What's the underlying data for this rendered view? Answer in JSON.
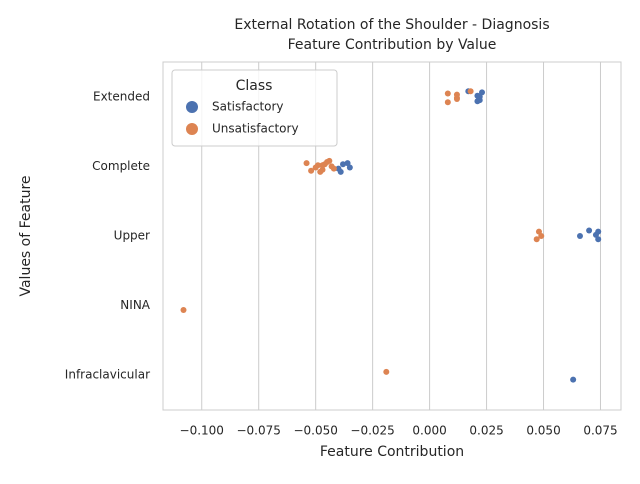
{
  "chart_data": {
    "type": "strip",
    "title": "External Rotation of the Shoulder - Diagnosis",
    "subtitle": "Feature Contribution by Value",
    "xlabel": "Feature Contribution",
    "ylabel": "Values of Feature",
    "categories": [
      "Extended",
      "Complete",
      "Upper",
      "NINA",
      "Infraclavicular"
    ],
    "xlim": [
      -0.117,
      0.084
    ],
    "xticks": [
      {
        "value": -0.1,
        "label": "−0.100"
      },
      {
        "value": -0.075,
        "label": "−0.075"
      },
      {
        "value": -0.05,
        "label": "−0.050"
      },
      {
        "value": -0.025,
        "label": "−0.025"
      },
      {
        "value": 0,
        "label": "0.000"
      },
      {
        "value": 0.025,
        "label": "0.025"
      },
      {
        "value": 0.05,
        "label": "0.050"
      },
      {
        "value": 0.075,
        "label": "0.075"
      }
    ],
    "grid": true,
    "legend": {
      "title": "Class",
      "position": "upper-left"
    },
    "series": [
      {
        "name": "Satisfactory",
        "color": "#4c72b0",
        "x": [
          0.017,
          0.021,
          0.022,
          0.023,
          0.022,
          0.021,
          -0.036,
          -0.035,
          -0.039,
          -0.038,
          -0.04,
          0.07,
          0.073,
          0.074,
          0.074,
          0.066,
          0.063
        ],
        "y": [
          "Extended",
          "Extended",
          "Extended",
          "Extended",
          "Extended",
          "Extended",
          "Complete",
          "Complete",
          "Complete",
          "Complete",
          "Complete",
          "Upper",
          "Upper",
          "Upper",
          "Upper",
          "Upper",
          "Infraclavicular"
        ]
      },
      {
        "name": "Unsatisfactory",
        "color": "#dd8452",
        "x": [
          0.008,
          0.012,
          0.008,
          0.012,
          0.012,
          0.018,
          -0.049,
          -0.047,
          -0.045,
          -0.043,
          -0.052,
          -0.054,
          -0.05,
          -0.048,
          -0.046,
          -0.042,
          -0.044,
          -0.047,
          0.047,
          0.048,
          0.049,
          -0.108,
          -0.019
        ],
        "y": [
          "Extended",
          "Extended",
          "Extended",
          "Extended",
          "Extended",
          "Extended",
          "Complete",
          "Complete",
          "Complete",
          "Complete",
          "Complete",
          "Complete",
          "Complete",
          "Complete",
          "Complete",
          "Complete",
          "Complete",
          "Complete",
          "Upper",
          "Upper",
          "Upper",
          "NINA",
          "Infraclavicular"
        ]
      }
    ]
  }
}
